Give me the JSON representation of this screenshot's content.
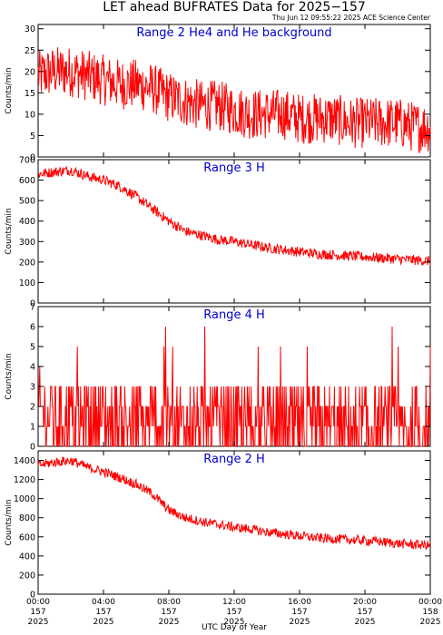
{
  "title": "LET ahead BUFRATES Data for 2025−157",
  "timestamp": "Thu Jun 12 09:55:22 2025 ACE Science Center",
  "xlabel": "UTC Day of Year",
  "colors": {
    "line": "#ff0000",
    "panel_title": "#0000cc",
    "axis": "#000000"
  },
  "x_ticks": [
    {
      "t": 0,
      "time": "00:00",
      "doy": "157",
      "year": "2025"
    },
    {
      "t": 4,
      "time": "04:00",
      "doy": "157",
      "year": "2025"
    },
    {
      "t": 8,
      "time": "08:00",
      "doy": "157",
      "year": "2025"
    },
    {
      "t": 12,
      "time": "12:00",
      "doy": "157",
      "year": "2025"
    },
    {
      "t": 16,
      "time": "16:00",
      "doy": "157",
      "year": "2025"
    },
    {
      "t": 20,
      "time": "20:00",
      "doy": "157",
      "year": "2025"
    },
    {
      "t": 24,
      "time": "00:00",
      "doy": "158",
      "year": "2025"
    }
  ],
  "chart_data": [
    {
      "type": "line",
      "title": "Range 2 He4 and He background",
      "ylabel": "Counts/min",
      "ylim": [
        0,
        31
      ],
      "yticks": [
        0,
        5,
        10,
        15,
        20,
        25,
        30
      ],
      "x_hours": [
        0,
        1,
        2,
        3,
        4,
        5,
        6,
        7,
        8,
        9,
        10,
        11,
        12,
        13,
        14,
        15,
        16,
        17,
        18,
        19,
        20,
        21,
        22,
        23,
        24
      ],
      "values": [
        19,
        20,
        20,
        19,
        18,
        17,
        17,
        16,
        14,
        13,
        12,
        12,
        11,
        10,
        10,
        10,
        9,
        9,
        9,
        8,
        8,
        8,
        8,
        7,
        7
      ],
      "spread": 6
    },
    {
      "type": "line",
      "title": "Range 3 H",
      "ylabel": "Counts/min",
      "ylim": [
        0,
        700
      ],
      "yticks": [
        0,
        100,
        200,
        300,
        400,
        500,
        600,
        700
      ],
      "x_hours": [
        0,
        1,
        2,
        3,
        4,
        5,
        6,
        7,
        8,
        9,
        10,
        11,
        12,
        13,
        14,
        15,
        16,
        17,
        18,
        19,
        20,
        21,
        22,
        23,
        24
      ],
      "values": [
        630,
        640,
        650,
        620,
        600,
        570,
        520,
        460,
        400,
        350,
        330,
        310,
        300,
        285,
        270,
        260,
        250,
        240,
        235,
        230,
        225,
        220,
        215,
        210,
        205
      ],
      "spread": 25
    },
    {
      "type": "line",
      "title": "Range 4 H",
      "ylabel": "Counts/min",
      "ylim": [
        0,
        7
      ],
      "yticks": [
        0,
        1,
        2,
        3,
        4,
        5,
        6,
        7
      ],
      "x_hours": [
        0,
        6,
        12,
        18,
        24
      ],
      "values": [
        1.5,
        1.2,
        1.0,
        0.9,
        0.8
      ],
      "discrete": true
    },
    {
      "type": "line",
      "title": "Range 2 H",
      "ylabel": "Counts/min",
      "ylim": [
        0,
        1500
      ],
      "yticks": [
        0,
        200,
        400,
        600,
        800,
        1000,
        1200,
        1400
      ],
      "x_hours": [
        0,
        1,
        2,
        3,
        4,
        5,
        6,
        7,
        8,
        9,
        10,
        11,
        12,
        13,
        14,
        15,
        16,
        17,
        18,
        19,
        20,
        21,
        22,
        23,
        24
      ],
      "values": [
        1350,
        1380,
        1400,
        1330,
        1280,
        1220,
        1150,
        1050,
        880,
        800,
        760,
        730,
        700,
        680,
        650,
        630,
        610,
        590,
        580,
        570,
        560,
        550,
        530,
        520,
        510
      ],
      "spread": 50
    }
  ]
}
